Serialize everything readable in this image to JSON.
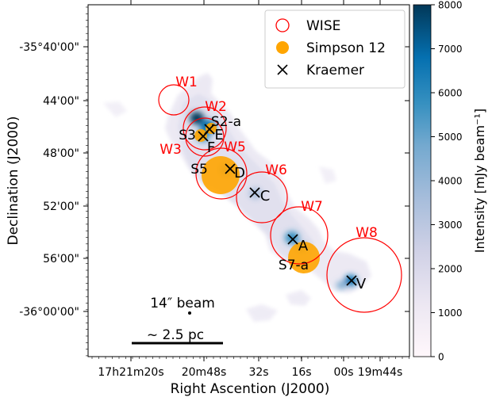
{
  "chart_data": {
    "type": "image",
    "xlabel": "Right Ascention (J2000)",
    "ylabel": "Declination (J2000)",
    "x_ticks": [
      "17h21m20s",
      "20m48s",
      "32s",
      "16s",
      "00s",
      "19m44s"
    ],
    "y_ticks": [
      "-35°40'00\"",
      "44'00\"",
      "48'00\"",
      "52'00\"",
      "56'00\"",
      "-36°00'00\""
    ],
    "colorbar": {
      "label": "Intensity [mJy beam⁻¹]",
      "range": [
        0,
        8000
      ],
      "ticks": [
        "0",
        "1000",
        "2000",
        "3000",
        "4000",
        "5000",
        "6000",
        "7000",
        "8000"
      ],
      "color_low": "#f7f4f9",
      "color_mid": "#74a9cf",
      "color_high": "#023858"
    },
    "legend": {
      "placement": "top-right",
      "entries": [
        {
          "label": "WISE",
          "marker": "open-circle",
          "color": "#ff0000"
        },
        {
          "label": "Simpson 12",
          "marker": "filled-circle",
          "color": "#ffa500"
        },
        {
          "label": "Kraemer",
          "marker": "x",
          "color": "#000000"
        }
      ]
    },
    "wise_regions": [
      {
        "label": "W1"
      },
      {
        "label": "W2"
      },
      {
        "label": "W3"
      },
      {
        "label": "W5"
      },
      {
        "label": "W6"
      },
      {
        "label": "W7"
      },
      {
        "label": "W8"
      }
    ],
    "simpson_sources": [
      {
        "label": "S2-a"
      },
      {
        "label": "S3"
      },
      {
        "label": "S5"
      },
      {
        "label": "S7-a"
      }
    ],
    "kraemer_sources": [
      {
        "label": "E"
      },
      {
        "label": "F"
      },
      {
        "label": "D"
      },
      {
        "label": "C"
      },
      {
        "label": "A"
      },
      {
        "label": "V"
      }
    ],
    "beam_label": "14″ beam",
    "scale_label": "~ 2.5 pc",
    "colors": {
      "wise": "#ff0000",
      "simpson": "#ffa500",
      "kraemer": "#000000"
    }
  }
}
